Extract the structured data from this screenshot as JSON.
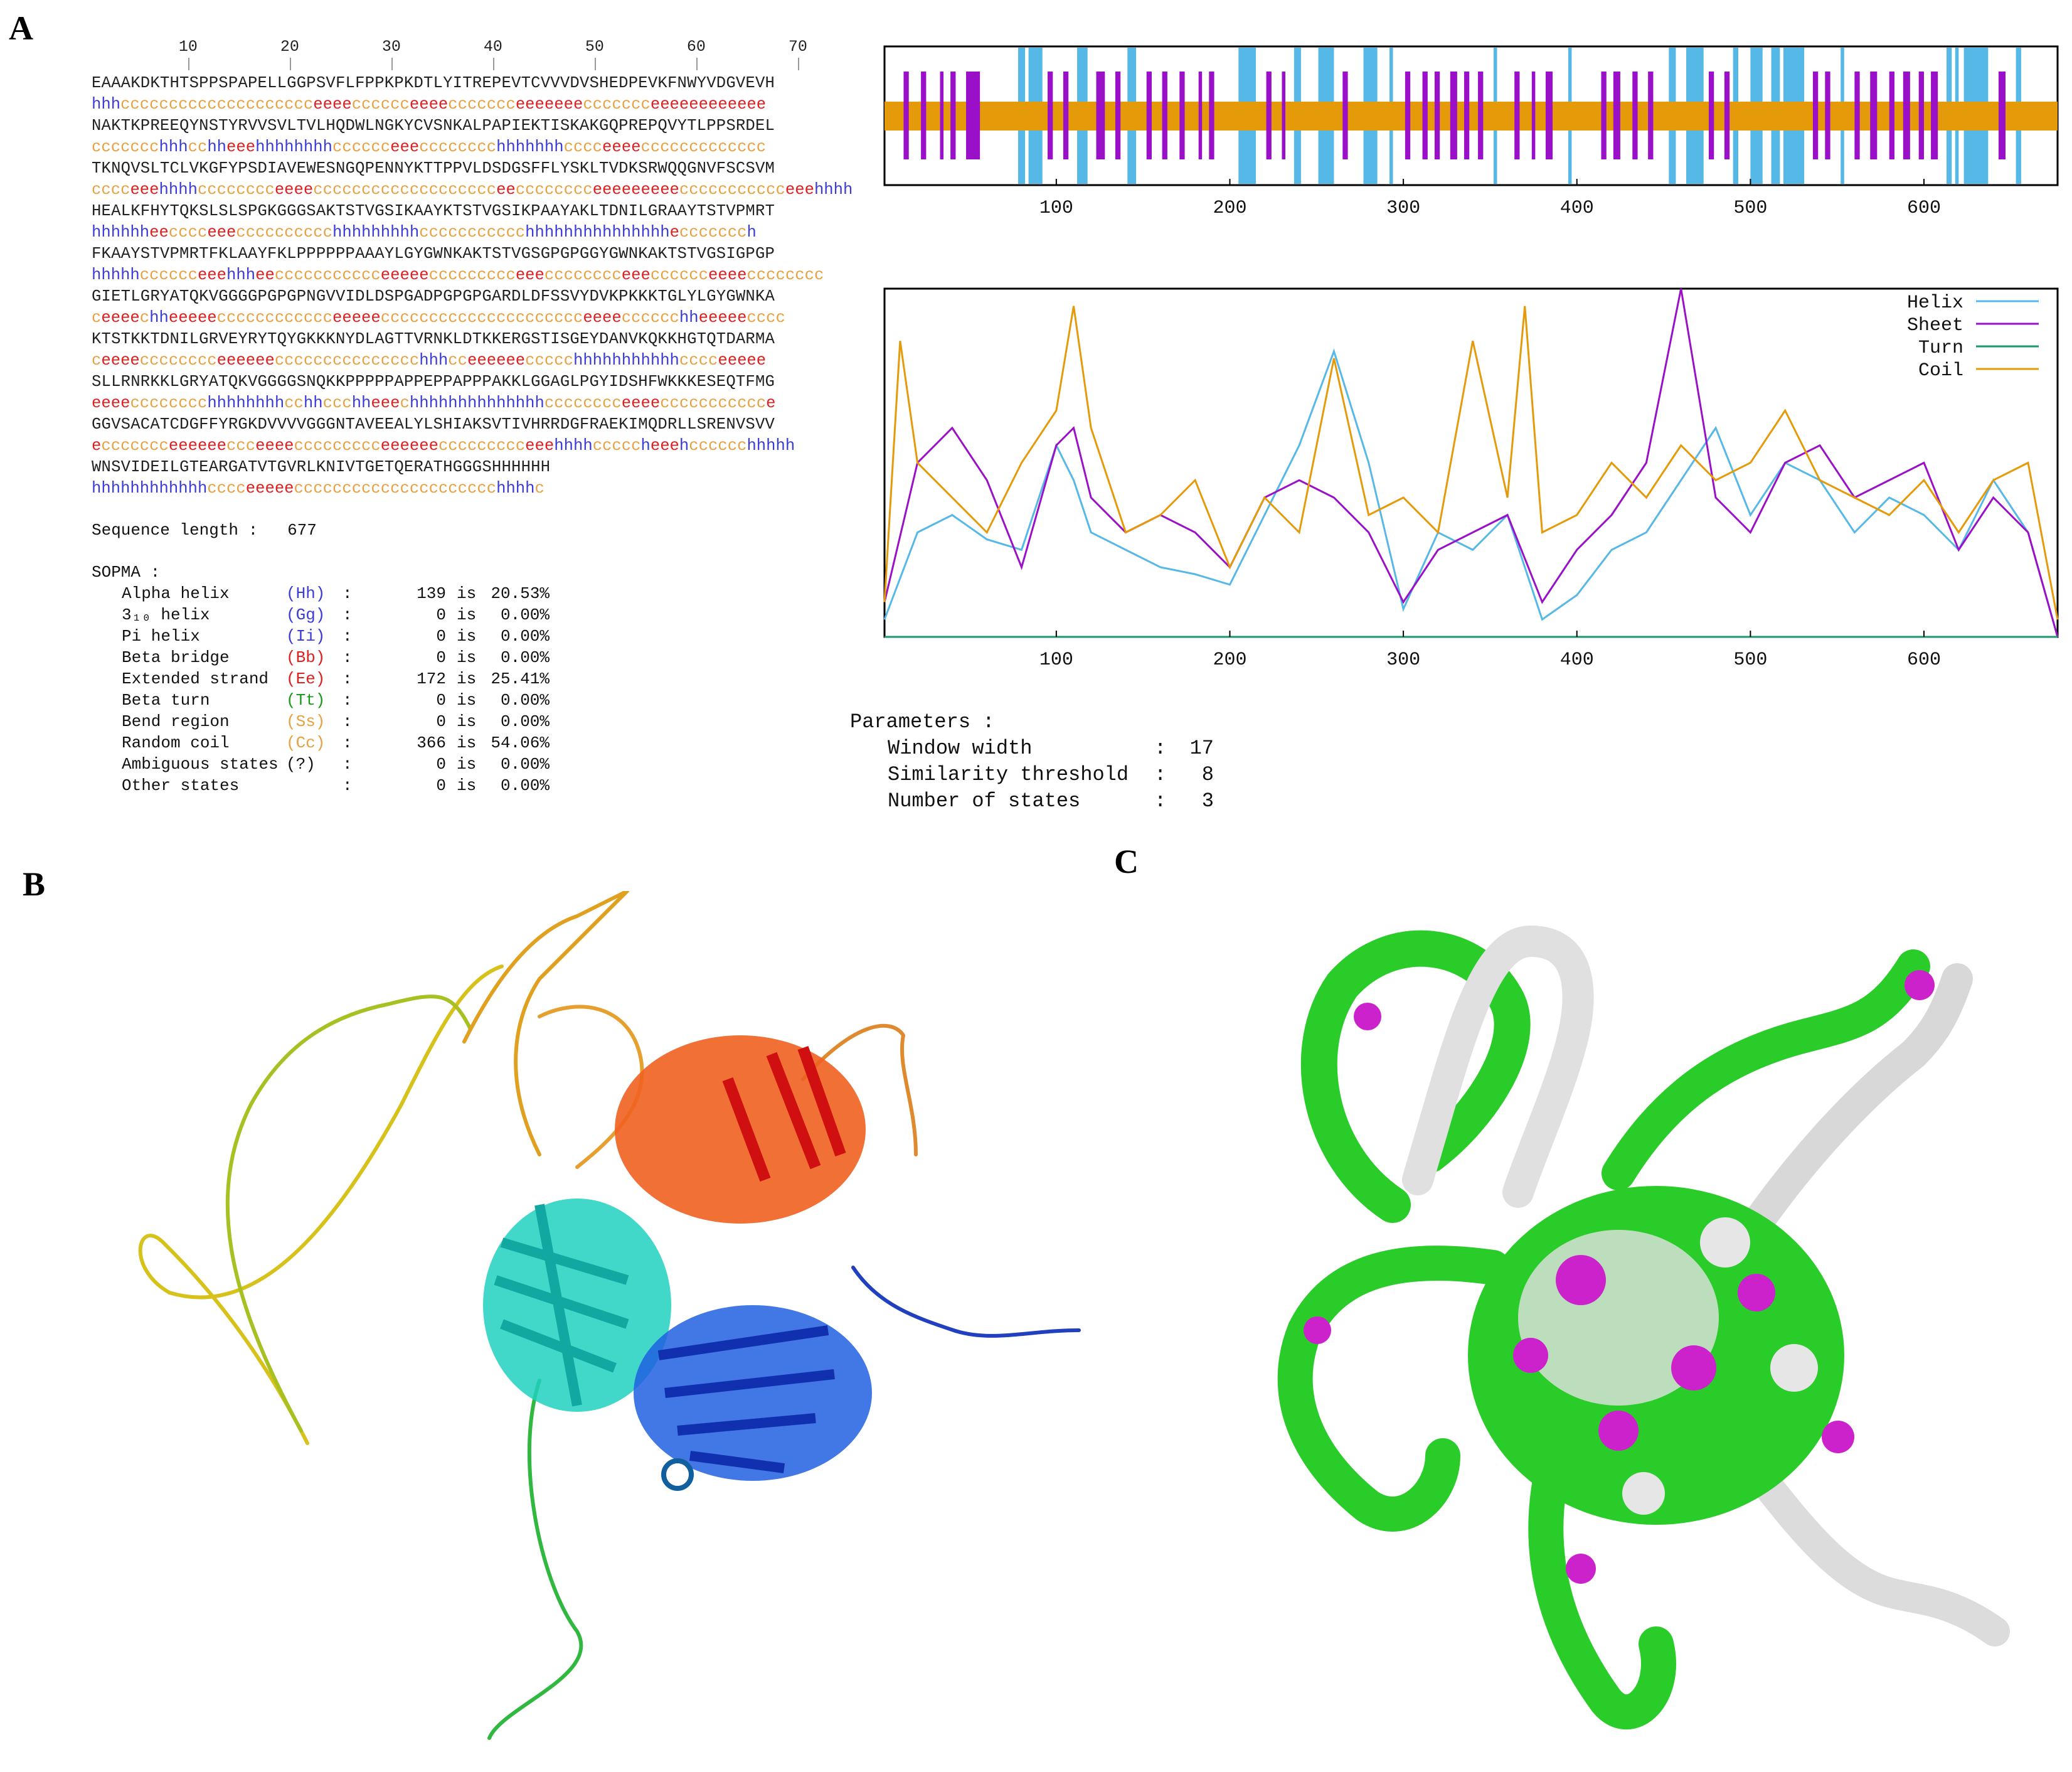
{
  "panels": {
    "a": "A",
    "b": "B",
    "c": "C"
  },
  "ruler_ticks": [
    "10",
    "20",
    "30",
    "40",
    "50",
    "60",
    "70"
  ],
  "sequence_lines": [
    {
      "aa": "EAAAKDKTHTSPPSPAPELLGGPSVFLFPPKPKDTLYITREPEVTCVVVDVSHEDPEVKFNWYVDGVEVH",
      "ss": "hhhcccccccccccccccccccceeeecccccceeeeccccccceeeeeeeccccccceeeeeeeeeeee"
    },
    {
      "aa": "NAKTKPREEQYNSTYRVVSVLTVLHQDWLNGKYCVSNKALPAPIEKTISKAKGQPREPQVYTLPPSRDEL",
      "ss": "ccccccchhhcchheeehhhhhhhhcccccceeecccccccchhhhhhhcccceeeeccccccccccccc"
    },
    {
      "aa": "TKNQVSLTCLVKGFYPSDIAVEWESNGQPENNYKTTPPVLDSDGSFFLYSKLTVDKSRWQQGNVFSCSVM",
      "ss": "cccceeehhhhcccccccceeeeccccccccccccccccccceecccccccceeeeeeeeeccccccccccceeehhhh"
    },
    {
      "aa": "HEALKFHYTQKSLSLSPGKGGGSAKTSTVGSIKAAYKTSTVGSIKPAAYAKLTDNILGRAAYTSTVPMRT",
      "ss": "hhhhhheecccceeecccccccccchhhhhhhhhccccccccccchhhhhhhhhhhhhhheccccccch"
    },
    {
      "aa": "FKAAYSTVPMRTFKLAAYFKLPPPPPPAAAYLGYGWNKAKTSTVGSGPGPGGYGWNKAKTSTVGSIGPGP",
      "ss": "hhhhhcccccceeehhheeccccccccccceeeeeccccccccceeecccccccceeecccccceeeecccccccc"
    },
    {
      "aa": "GIETLGRYATQKVGGGGPGPGPNGVVIDLDSPGADPGPGPGARDLDFSSVYDVKPKKKTGLYLGYGWNKA",
      "ss": "ceeeechheeeeecccccccccccceeeeeccccccccccccccccccccceeeecccccchheeeeecccc"
    },
    {
      "aa": "KTSTKKTDNILGRVEYRYTQYGKKKNYDLAGTTVRNKLDTKKERGSTISGEYDANVKQKKHGTQTDARMA",
      "ss": "ceeeecccccccceeeeeeccccccccccccccchhhcceeeeeeccccchhhhhhhhhhhcccceeeee"
    },
    {
      "aa": "SLLRNRKKLGRYATQKVGGGGSNQKKPPPPPAPPEPPAPPPAKKLGGAGLPGYIDSHFWKKKESEQTFMG",
      "ss": "eeeecccccccchhhhhhhhcchhccchheeechhhhhhhhhhhhhhcccccccceeeeccccccccccce"
    },
    {
      "aa": "GGVSACATCDGFFYRGKDVVVVGGGNTAVEEALYLSHIAKSVTIVHRRDGFRAEKIMQDRLLSRENVSVV",
      "ss": "eccccccceeeeeeccceeeeccccccccceeeeeeccccccccceeehhhhcccccheeehcccccchhhhh"
    },
    {
      "aa": "WNSVIDEILGTEARGATVTGVRLKNIVTGETQERATHGGGSHHHHHH",
      "ss": "hhhhhhhhhhhhcccceeeeeccccccccccccccccccccchhhhc"
    }
  ],
  "sequence_length_label": "Sequence length :",
  "sequence_length_value": "677",
  "sopma": {
    "title": "SOPMA :",
    "rows": [
      {
        "name": "Alpha helix",
        "code": "(Hh)",
        "colon": ":",
        "count": "139",
        "is": "is",
        "pct": "20.53%",
        "color": "#3b3bd8"
      },
      {
        "name": "3₁₀ helix",
        "code": "(Gg)",
        "colon": ":",
        "count": "0",
        "is": "is",
        "pct": "0.00%",
        "color": "#3b3bd8"
      },
      {
        "name": "Pi helix",
        "code": "(Ii)",
        "colon": ":",
        "count": "0",
        "is": "is",
        "pct": "0.00%",
        "color": "#3b3bd8"
      },
      {
        "name": "Beta bridge",
        "code": "(Bb)",
        "colon": ":",
        "count": "0",
        "is": "is",
        "pct": "0.00%",
        "color": "#e02020"
      },
      {
        "name": "Extended strand",
        "code": "(Ee)",
        "colon": ":",
        "count": "172",
        "is": "is",
        "pct": "25.41%",
        "color": "#e02020"
      },
      {
        "name": "Beta turn",
        "code": "(Tt)",
        "colon": ":",
        "count": "0",
        "is": "is",
        "pct": "0.00%",
        "color": "#1a9a1a"
      },
      {
        "name": "Bend region",
        "code": "(Ss)",
        "colon": ":",
        "count": "0",
        "is": "is",
        "pct": "0.00%",
        "color": "#e8a040"
      },
      {
        "name": "Random coil",
        "code": "(Cc)",
        "colon": ":",
        "count": "366",
        "is": "is",
        "pct": "54.06%",
        "color": "#e8a040"
      },
      {
        "name": "Ambiguous states",
        "code": "(?)",
        "colon": ":",
        "count": "0",
        "is": "is",
        "pct": "0.00%",
        "color": "#111111"
      },
      {
        "name": "Other states",
        "code": "",
        "colon": ":",
        "count": "0",
        "is": "is",
        "pct": "0.00%",
        "color": "#111111"
      }
    ]
  },
  "parameters": {
    "title": "Parameters :",
    "rows": [
      {
        "key": "Window width",
        "value": "17"
      },
      {
        "key": "Similarity threshold",
        "value": "8"
      },
      {
        "key": "Number of states",
        "value": "3"
      }
    ]
  },
  "colors": {
    "helix": "#55b8e6",
    "sheet": "#9a10c8",
    "turn": "#1a9a6a",
    "coil": "#e59a0a",
    "hydrophobic_green": "#22cc22",
    "hydrophilic_magenta": "#cc22cc",
    "neutral_white": "#dddddd"
  },
  "chart_data": [
    {
      "type": "bar",
      "x_ticks": [
        "100",
        "200",
        "300",
        "400",
        "500",
        "600"
      ],
      "x_tick_values": [
        100,
        200,
        300,
        400,
        500,
        600
      ],
      "xlim": [
        1,
        677
      ],
      "coil_band": [
        1,
        677
      ],
      "helix_segments": [
        [
          78,
          82
        ],
        [
          84,
          92
        ],
        [
          112,
          118
        ],
        [
          141,
          146
        ],
        [
          205,
          215
        ],
        [
          237,
          241
        ],
        [
          251,
          260
        ],
        [
          277,
          285
        ],
        [
          292,
          294
        ],
        [
          352,
          354
        ],
        [
          395,
          397
        ],
        [
          453,
          457
        ],
        [
          463,
          473
        ],
        [
          490,
          493
        ],
        [
          500,
          507
        ],
        [
          512,
          517
        ],
        [
          519,
          531
        ],
        [
          552,
          554
        ],
        [
          613,
          616
        ],
        [
          618,
          620
        ],
        [
          623,
          637
        ],
        [
          653,
          656
        ]
      ],
      "sheet_segments": [
        [
          12,
          15
        ],
        [
          22,
          25
        ],
        [
          33,
          35
        ],
        [
          39,
          42
        ],
        [
          48,
          56
        ],
        [
          95,
          98
        ],
        [
          104,
          107
        ],
        [
          123,
          128
        ],
        [
          134,
          137
        ],
        [
          152,
          155
        ],
        [
          161,
          164
        ],
        [
          171,
          174
        ],
        [
          182,
          184
        ],
        [
          188,
          191
        ],
        [
          221,
          224
        ],
        [
          230,
          232
        ],
        [
          265,
          268
        ],
        [
          301,
          304
        ],
        [
          311,
          314
        ],
        [
          318,
          321
        ],
        [
          327,
          331
        ],
        [
          335,
          338
        ],
        [
          343,
          346
        ],
        [
          364,
          367
        ],
        [
          374,
          376
        ],
        [
          382,
          386
        ],
        [
          414,
          417
        ],
        [
          421,
          425
        ],
        [
          432,
          435
        ],
        [
          441,
          444
        ],
        [
          476,
          479
        ],
        [
          485,
          488
        ],
        [
          536,
          539
        ],
        [
          543,
          546
        ],
        [
          560,
          563
        ],
        [
          569,
          573
        ],
        [
          580,
          583
        ],
        [
          588,
          592
        ],
        [
          597,
          600
        ],
        [
          604,
          608
        ],
        [
          643,
          647
        ]
      ]
    },
    {
      "type": "line",
      "x_ticks": [
        "100",
        "200",
        "300",
        "400",
        "500",
        "600"
      ],
      "x_tick_values": [
        100,
        200,
        300,
        400,
        500,
        600
      ],
      "xlim": [
        1,
        677
      ],
      "ylim": [
        0,
        1
      ],
      "legend": [
        "Helix",
        "Sheet",
        "Turn",
        "Coil"
      ],
      "legend_position": "top-right",
      "series": [
        {
          "name": "Helix",
          "x": [
            1,
            20,
            40,
            60,
            80,
            100,
            110,
            120,
            140,
            160,
            180,
            200,
            220,
            240,
            260,
            280,
            300,
            320,
            340,
            360,
            380,
            400,
            420,
            440,
            460,
            480,
            500,
            520,
            540,
            560,
            580,
            600,
            620,
            640,
            660,
            677
          ],
          "values": [
            0.05,
            0.3,
            0.35,
            0.28,
            0.25,
            0.55,
            0.45,
            0.3,
            0.25,
            0.2,
            0.18,
            0.15,
            0.35,
            0.55,
            0.82,
            0.5,
            0.08,
            0.3,
            0.25,
            0.35,
            0.05,
            0.12,
            0.25,
            0.3,
            0.45,
            0.6,
            0.35,
            0.5,
            0.45,
            0.3,
            0.4,
            0.35,
            0.25,
            0.45,
            0.3,
            0.0
          ]
        },
        {
          "name": "Sheet",
          "x": [
            1,
            20,
            40,
            60,
            80,
            100,
            110,
            120,
            140,
            160,
            180,
            200,
            220,
            240,
            260,
            280,
            300,
            320,
            340,
            360,
            380,
            400,
            420,
            440,
            460,
            480,
            500,
            520,
            540,
            560,
            580,
            600,
            620,
            640,
            660,
            677
          ],
          "values": [
            0.1,
            0.5,
            0.6,
            0.45,
            0.2,
            0.55,
            0.6,
            0.4,
            0.3,
            0.35,
            0.3,
            0.2,
            0.4,
            0.45,
            0.4,
            0.3,
            0.1,
            0.25,
            0.3,
            0.35,
            0.1,
            0.25,
            0.35,
            0.5,
            1.0,
            0.4,
            0.3,
            0.5,
            0.55,
            0.4,
            0.45,
            0.5,
            0.25,
            0.4,
            0.3,
            0.0
          ]
        },
        {
          "name": "Turn",
          "x": [
            1,
            677
          ],
          "values": [
            0.0,
            0.0
          ]
        },
        {
          "name": "Coil",
          "x": [
            1,
            10,
            20,
            40,
            60,
            80,
            100,
            110,
            120,
            140,
            160,
            180,
            200,
            220,
            240,
            260,
            280,
            300,
            320,
            340,
            360,
            370,
            380,
            400,
            420,
            440,
            460,
            480,
            500,
            520,
            540,
            560,
            580,
            600,
            620,
            640,
            660,
            677
          ],
          "values": [
            0.1,
            0.85,
            0.5,
            0.4,
            0.3,
            0.5,
            0.65,
            0.95,
            0.6,
            0.3,
            0.35,
            0.45,
            0.2,
            0.4,
            0.3,
            0.8,
            0.35,
            0.4,
            0.3,
            0.85,
            0.4,
            0.95,
            0.3,
            0.35,
            0.5,
            0.4,
            0.55,
            0.45,
            0.5,
            0.65,
            0.45,
            0.4,
            0.35,
            0.45,
            0.3,
            0.45,
            0.5,
            0.05
          ]
        }
      ]
    }
  ]
}
